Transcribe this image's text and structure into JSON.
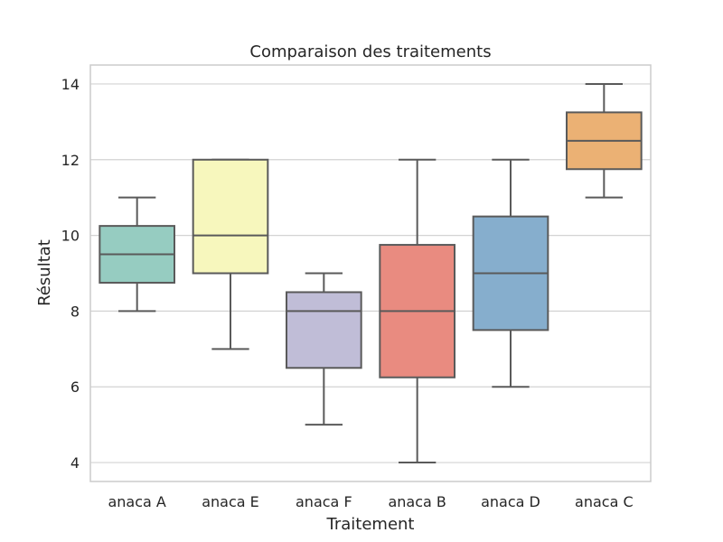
{
  "chart_data": {
    "type": "box",
    "title": "Comparaison des traitements",
    "xlabel": "Traitement",
    "ylabel": "Résultat",
    "ylim": [
      3.5,
      14.5
    ],
    "yticks": [
      4,
      6,
      8,
      10,
      12,
      14
    ],
    "grid": true,
    "categories": [
      "anaca A",
      "anaca E",
      "anaca F",
      "anaca B",
      "anaca D",
      "anaca C"
    ],
    "boxes": [
      {
        "category": "anaca A",
        "whisker_low": 8,
        "q1": 8.75,
        "median": 9.5,
        "q3": 10.25,
        "whisker_high": 11,
        "color": "#96ccc1"
      },
      {
        "category": "anaca E",
        "whisker_low": 7,
        "q1": 9,
        "median": 10,
        "q3": 12,
        "whisker_high": 12,
        "color": "#f7f7bd"
      },
      {
        "category": "anaca F",
        "whisker_low": 5,
        "q1": 6.5,
        "median": 8,
        "q3": 8.5,
        "whisker_high": 9,
        "color": "#c0bdd7"
      },
      {
        "category": "anaca B",
        "whisker_low": 4,
        "q1": 6.25,
        "median": 8,
        "q3": 9.75,
        "whisker_high": 12,
        "color": "#e98b80"
      },
      {
        "category": "anaca D",
        "whisker_low": 6,
        "q1": 7.5,
        "median": 9,
        "q3": 10.5,
        "whisker_high": 12,
        "color": "#86aecd"
      },
      {
        "category": "anaca C",
        "whisker_low": 11,
        "q1": 11.75,
        "median": 12.5,
        "q3": 13.25,
        "whisker_high": 14,
        "color": "#ebb174"
      }
    ]
  },
  "colors": {
    "grid": "#d3d3d3",
    "frame": "#cccccc",
    "box_edge": "#5a5a5a",
    "text": "#262626"
  }
}
